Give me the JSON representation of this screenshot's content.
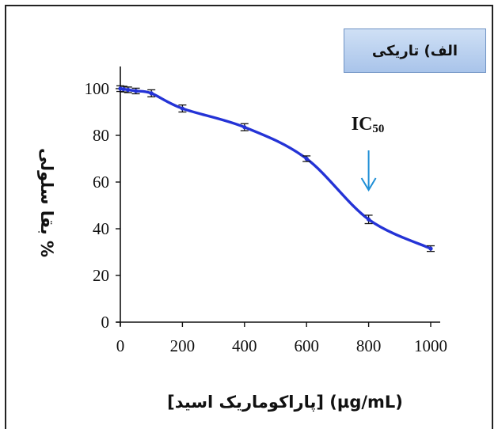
{
  "chart_data": {
    "type": "line",
    "title": "الف) تاریکی",
    "xlabel": "(µg/mL) [پاراکوماریک اسید]",
    "ylabel": "% بقا سلولی",
    "xlim": [
      0,
      1000
    ],
    "ylim": [
      0,
      100
    ],
    "xticks": [
      "0",
      "200",
      "400",
      "600",
      "800",
      "1000"
    ],
    "yticks": [
      "0",
      "20",
      "40",
      "60",
      "80",
      "100"
    ],
    "grid": false,
    "series": [
      {
        "color": "#2433d6",
        "x": [
          0,
          10,
          25,
          50,
          100,
          200,
          400,
          600,
          800,
          1000
        ],
        "y": [
          100,
          99.8,
          99.5,
          99,
          98,
          91.5,
          83.5,
          70,
          44,
          31.5
        ],
        "err": [
          1.2,
          1.2,
          1.2,
          1.2,
          1.5,
          1.5,
          1.5,
          1.2,
          1.8,
          1.2
        ]
      }
    ],
    "annotations": [
      {
        "text": "IC",
        "sub": "50",
        "x": 800,
        "arrow_color": "#1f8fd6"
      }
    ]
  }
}
